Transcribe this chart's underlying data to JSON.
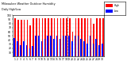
{
  "title": "Milwaukee Weather Outdoor Humidity",
  "subtitle": "Daily High/Low",
  "days": [
    1,
    2,
    3,
    4,
    5,
    6,
    7,
    8,
    9,
    10,
    11,
    12,
    13,
    14,
    15,
    16,
    17,
    18,
    19,
    20,
    21,
    22,
    23,
    24,
    25,
    26,
    27,
    28,
    29,
    30
  ],
  "high": [
    93,
    88,
    88,
    88,
    88,
    75,
    93,
    93,
    93,
    93,
    93,
    93,
    93,
    93,
    93,
    93,
    93,
    93,
    93,
    60,
    93,
    93,
    93,
    93,
    93,
    93,
    80,
    93,
    93,
    93
  ],
  "low": [
    45,
    38,
    28,
    38,
    28,
    20,
    25,
    50,
    50,
    38,
    42,
    50,
    50,
    42,
    50,
    42,
    50,
    50,
    50,
    38,
    50,
    50,
    42,
    38,
    32,
    50,
    32,
    42,
    28,
    32
  ],
  "high_color": "#ff0000",
  "low_color": "#0000ff",
  "bg_color": "#ffffff",
  "ylim": [
    0,
    100
  ],
  "ytick_vals": [
    10,
    20,
    30,
    40,
    50,
    60,
    70,
    80,
    90,
    100
  ],
  "dashed_x": [
    17.5
  ],
  "legend_high": "High",
  "legend_low": "Low"
}
